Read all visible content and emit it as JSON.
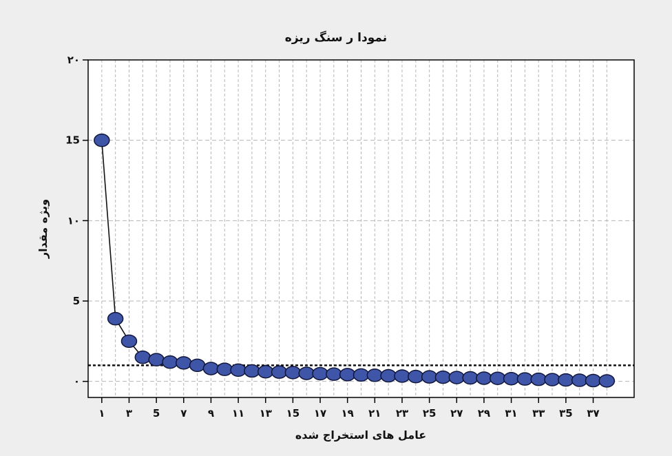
{
  "colors": {
    "background": "#eeeeee",
    "plot_background": "#ffffff",
    "grid": "#b5b5b5",
    "marker_fill": "#3f56a8",
    "marker_stroke": "#10153a",
    "line": "#111111",
    "reference_line": "#111111"
  },
  "chart_data": {
    "type": "line",
    "title": "نمودا ر سنگ ریزه",
    "xlabel": "عامل های استخراج شده",
    "ylabel": "ویژه مقدار",
    "xlim": [
      0,
      40
    ],
    "ylim": [
      -1,
      20
    ],
    "grid": true,
    "legend": "none",
    "x_ticks": [
      1,
      3,
      5,
      7,
      9,
      11,
      13,
      15,
      17,
      19,
      21,
      23,
      25,
      27,
      29,
      31,
      33,
      35,
      37
    ],
    "x_tick_labels": [
      "۱",
      "۳",
      "5",
      "۷",
      "۹",
      "۱۱",
      "۱۳",
      "۱5",
      "۱۷",
      "۱۹",
      "۲۱",
      "۲۳",
      "۲5",
      "۲۷",
      "۲۹",
      "۳۱",
      "۳۳",
      "۳5",
      "۳۷"
    ],
    "y_ticks": [
      0,
      5,
      10,
      15,
      20
    ],
    "y_tick_labels": [
      "۰",
      "5",
      "۱۰",
      "15",
      "۲۰"
    ],
    "reference_line_y": 1,
    "series": [
      {
        "x": [
          1,
          2,
          3,
          4,
          5,
          6,
          7,
          8,
          9,
          10,
          11,
          12,
          13,
          14,
          15,
          16,
          17,
          18,
          19,
          20,
          21,
          22,
          23,
          24,
          25,
          26,
          27,
          28,
          29,
          30,
          31,
          32,
          33,
          34,
          35,
          36,
          37,
          38
        ],
        "values": [
          15.0,
          3.9,
          2.5,
          1.5,
          1.35,
          1.2,
          1.15,
          1.0,
          0.8,
          0.75,
          0.7,
          0.65,
          0.6,
          0.58,
          0.55,
          0.5,
          0.48,
          0.45,
          0.42,
          0.4,
          0.38,
          0.35,
          0.33,
          0.3,
          0.28,
          0.26,
          0.24,
          0.22,
          0.2,
          0.19,
          0.17,
          0.15,
          0.13,
          0.11,
          0.09,
          0.07,
          0.05,
          0.03
        ]
      }
    ]
  }
}
